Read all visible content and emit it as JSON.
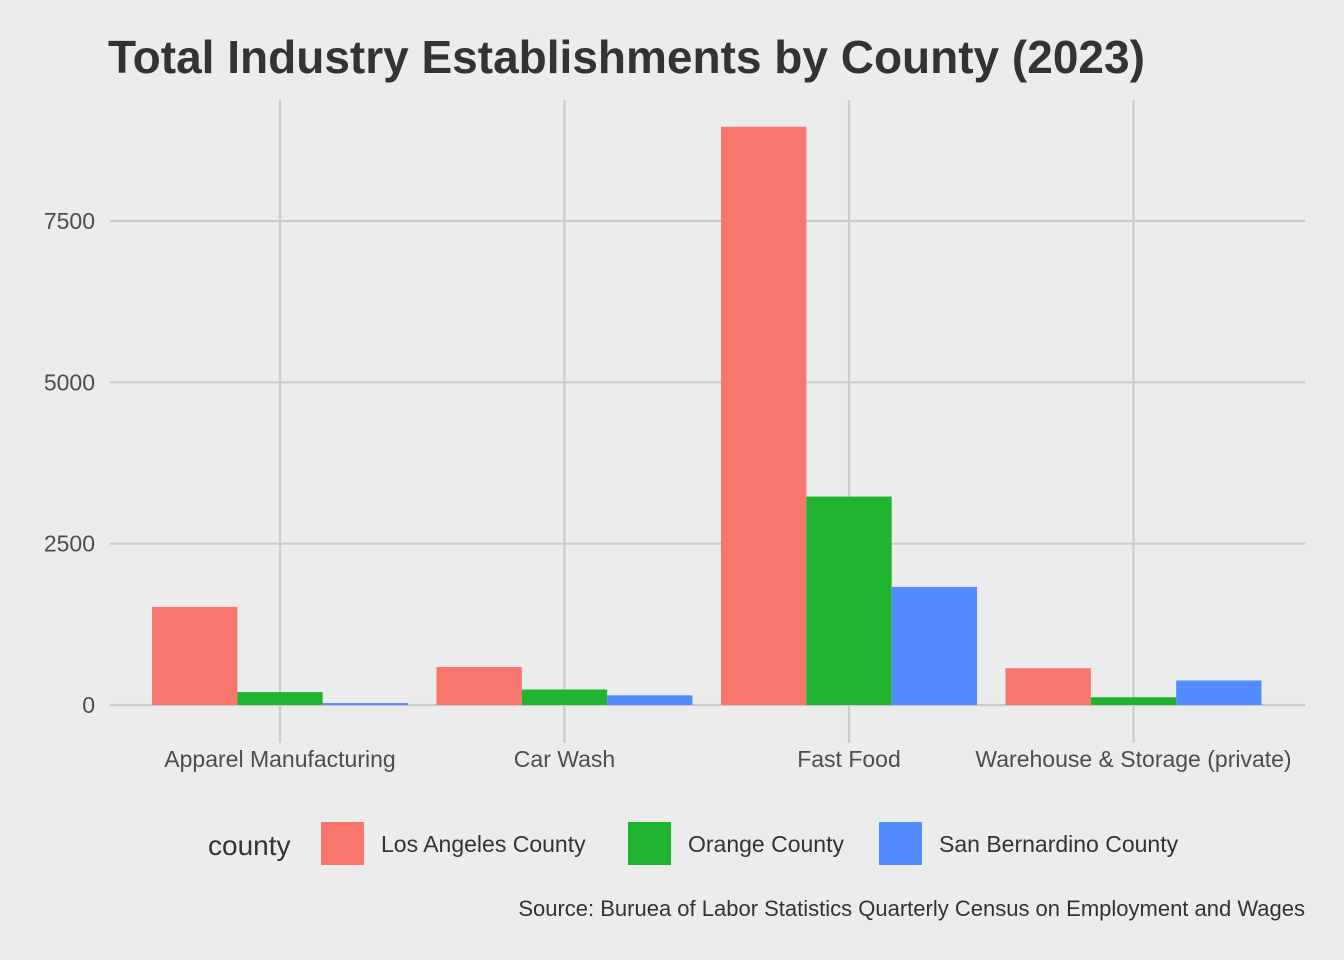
{
  "chart_data": {
    "type": "bar",
    "title": "Total Industry Establishments by County (2023)",
    "caption": "Source: Buruea of Labor Statistics Quarterly Census on Employment and Wages",
    "xlabel": "",
    "ylabel": "",
    "categories": [
      "Apparel Manufacturing",
      "Car Wash",
      "Fast Food",
      "Warehouse & Storage (private)"
    ],
    "series": [
      {
        "name": "Los Angeles County",
        "color": "#f8766d",
        "values": [
          1520,
          590,
          8960,
          570
        ]
      },
      {
        "name": "Orange County",
        "color": "#1fb32f",
        "values": [
          200,
          240,
          3230,
          120
        ]
      },
      {
        "name": "San Bernardino County",
        "color": "#528cff",
        "values": [
          30,
          150,
          1830,
          380
        ]
      }
    ],
    "ylim": [
      0,
      9400
    ],
    "yticks": [
      0,
      2500,
      5000,
      7500
    ],
    "ytick_labels": [
      "0",
      "2500",
      "5000",
      "7500"
    ],
    "grid": true,
    "legend": {
      "title": "county",
      "position": "bottom"
    }
  }
}
